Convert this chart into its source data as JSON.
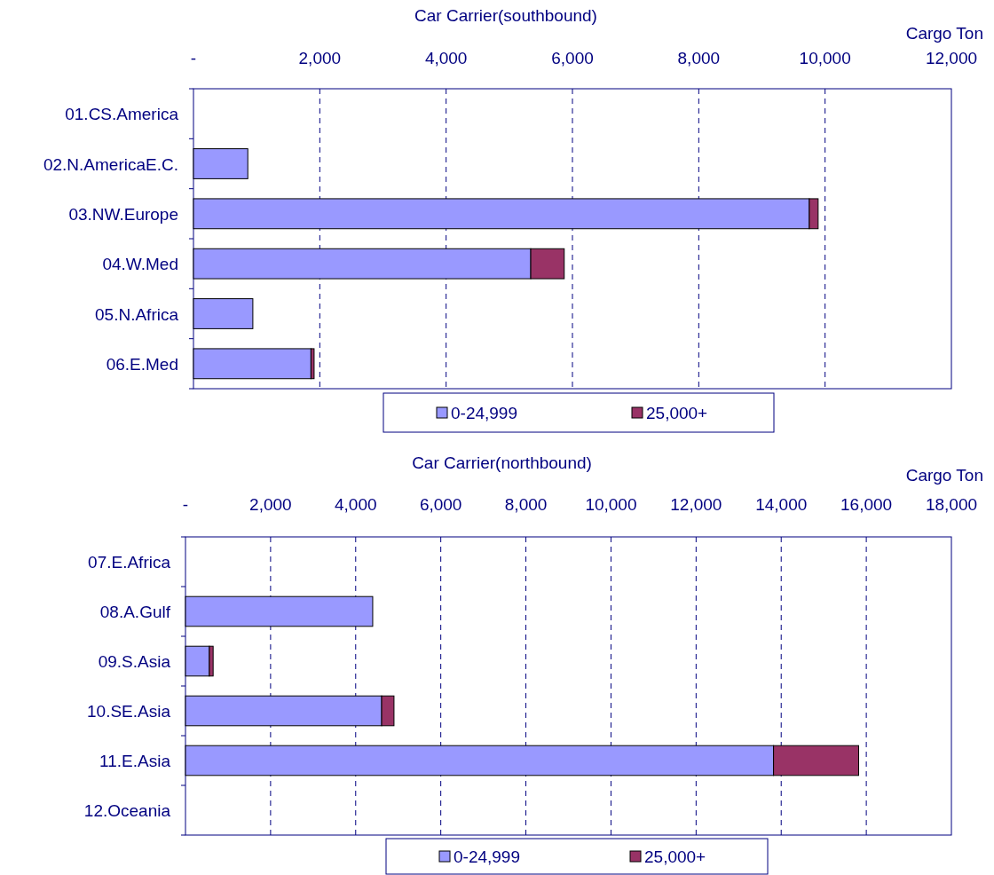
{
  "chart_data": [
    {
      "type": "bar",
      "title": "Car Carrier(southbound)",
      "xlabel": "Cargo Ton",
      "orientation": "horizontal",
      "stacked": true,
      "categories": [
        "01.CS.America",
        "02.N.AmericaE.C.",
        "03.NW.Europe",
        "04.W.Med",
        "05.N.Africa",
        "06.E.Med"
      ],
      "series": [
        {
          "name": "0-24,999",
          "color": "#9999ff",
          "values": [
            null,
            860,
            9750,
            5340,
            940,
            1860
          ]
        },
        {
          "name": "25,000+",
          "color": "#993366",
          "values": [
            null,
            null,
            140,
            530,
            null,
            50
          ]
        }
      ],
      "xlim": [
        0,
        12000
      ],
      "xticks": [
        {
          "value": 0,
          "label": "-"
        },
        {
          "value": 2000,
          "label": "2,000"
        },
        {
          "value": 4000,
          "label": "4,000"
        },
        {
          "value": 6000,
          "label": "6,000"
        },
        {
          "value": 8000,
          "label": "8,000"
        },
        {
          "value": 10000,
          "label": "10,000"
        },
        {
          "value": 12000,
          "label": "12,000"
        }
      ],
      "grid": "x",
      "legend": "bottom"
    },
    {
      "type": "bar",
      "title": "Car Carrier(northbound)",
      "xlabel": "Cargo Ton",
      "orientation": "horizontal",
      "stacked": true,
      "categories": [
        "07.E.Africa",
        "08.A.Gulf",
        "09.S.Asia",
        "10.SE.Asia",
        "11.E.Asia",
        "12.Oceania"
      ],
      "series": [
        {
          "name": "0-24,999",
          "color": "#9999ff",
          "values": [
            null,
            4400,
            560,
            4610,
            13820,
            null
          ]
        },
        {
          "name": "25,000+",
          "color": "#993366",
          "values": [
            null,
            null,
            90,
            290,
            2000,
            null
          ]
        }
      ],
      "xlim": [
        0,
        18000
      ],
      "xticks": [
        {
          "value": 0,
          "label": "-"
        },
        {
          "value": 2000,
          "label": "2,000"
        },
        {
          "value": 4000,
          "label": "4,000"
        },
        {
          "value": 6000,
          "label": "6,000"
        },
        {
          "value": 8000,
          "label": "8,000"
        },
        {
          "value": 10000,
          "label": "10,000"
        },
        {
          "value": 12000,
          "label": "12,000"
        },
        {
          "value": 14000,
          "label": "14,000"
        },
        {
          "value": 16000,
          "label": "16,000"
        },
        {
          "value": 18000,
          "label": "18,000"
        }
      ],
      "grid": "x",
      "legend": "bottom"
    }
  ]
}
